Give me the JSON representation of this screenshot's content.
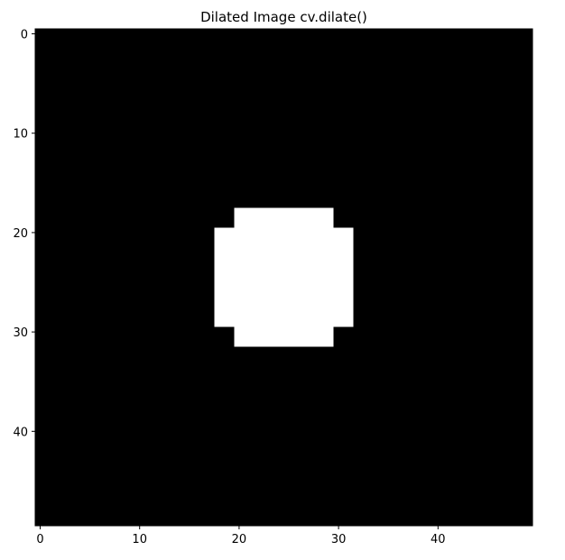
{
  "chart_data": {
    "type": "heatmap",
    "title": "Dilated Image cv.dilate()",
    "xlabel": "",
    "ylabel": "",
    "width": 50,
    "height": 50,
    "xlim": [
      0,
      49
    ],
    "ylim": [
      49,
      0
    ],
    "xticks": [
      0,
      10,
      20,
      30,
      40
    ],
    "yticks": [
      0,
      10,
      20,
      30,
      40
    ],
    "grid": false,
    "background_value": 0,
    "foreground_value": 255,
    "colormap": "gray",
    "foreground_rects": [
      {
        "x0": 20,
        "x1": 29,
        "y0": 18,
        "y1": 31
      },
      {
        "x0": 18,
        "x1": 31,
        "y0": 20,
        "y1": 29
      }
    ],
    "colors": {
      "background": "#000000",
      "foreground": "#ffffff",
      "axis": "#000000"
    }
  }
}
